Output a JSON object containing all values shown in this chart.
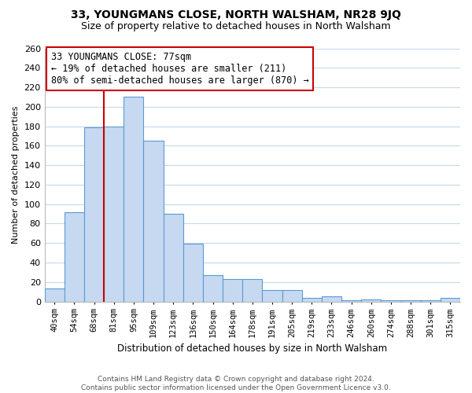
{
  "title": "33, YOUNGMANS CLOSE, NORTH WALSHAM, NR28 9JQ",
  "subtitle": "Size of property relative to detached houses in North Walsham",
  "xlabel": "Distribution of detached houses by size in North Walsham",
  "ylabel": "Number of detached properties",
  "categories": [
    "40sqm",
    "54sqm",
    "68sqm",
    "81sqm",
    "95sqm",
    "109sqm",
    "123sqm",
    "136sqm",
    "150sqm",
    "164sqm",
    "178sqm",
    "191sqm",
    "205sqm",
    "219sqm",
    "233sqm",
    "246sqm",
    "260sqm",
    "274sqm",
    "288sqm",
    "301sqm",
    "315sqm"
  ],
  "values": [
    13,
    92,
    179,
    180,
    210,
    165,
    90,
    59,
    27,
    23,
    23,
    12,
    12,
    4,
    5,
    1,
    2,
    1,
    1,
    1,
    4
  ],
  "bar_color": "#c6d9f0",
  "bar_edge_color": "#5b9bd5",
  "vline_x": 2.5,
  "vline_color": "#cc0000",
  "annotation_line1": "33 YOUNGMANS CLOSE: 77sqm",
  "annotation_line2": "← 19% of detached houses are smaller (211)",
  "annotation_line3": "80% of semi-detached houses are larger (870) →",
  "annotation_box_color": "#ffffff",
  "annotation_box_edge": "#cc0000",
  "footer_line1": "Contains HM Land Registry data © Crown copyright and database right 2024.",
  "footer_line2": "Contains public sector information licensed under the Open Government Licence v3.0.",
  "ylim": [
    0,
    260
  ],
  "yticks": [
    0,
    20,
    40,
    60,
    80,
    100,
    120,
    140,
    160,
    180,
    200,
    220,
    240,
    260
  ],
  "title_fontsize": 10,
  "subtitle_fontsize": 9,
  "background_color": "#ffffff",
  "grid_color": "#c8d8ea"
}
